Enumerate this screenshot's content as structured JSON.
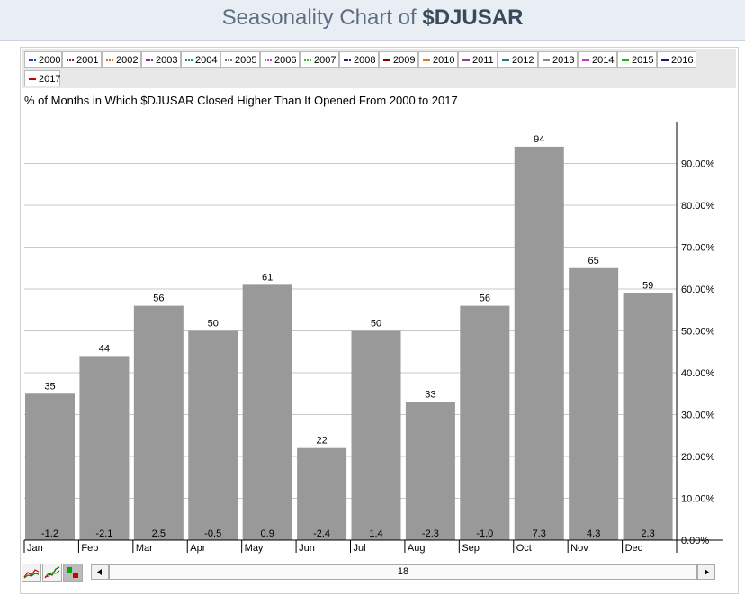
{
  "header": {
    "title_prefix": "Seasonality Chart of ",
    "title_symbol": "$DJUSAR"
  },
  "legend": [
    {
      "label": "2000",
      "color": "#1f3fbf",
      "style": "dotted"
    },
    {
      "label": "2001",
      "color": "#7a2a1a",
      "style": "dotted"
    },
    {
      "label": "2002",
      "color": "#e06a1a",
      "style": "dotted"
    },
    {
      "label": "2003",
      "color": "#8a2a8a",
      "style": "dotted"
    },
    {
      "label": "2004",
      "color": "#1a8a8a",
      "style": "dotted"
    },
    {
      "label": "2005",
      "color": "#777777",
      "style": "dotted"
    },
    {
      "label": "2006",
      "color": "#d040d0",
      "style": "dotted"
    },
    {
      "label": "2007",
      "color": "#30c030",
      "style": "dotted"
    },
    {
      "label": "2008",
      "color": "#1a1a8a",
      "style": "dotted"
    },
    {
      "label": "2009",
      "color": "#8a0000",
      "style": "solid"
    },
    {
      "label": "2010",
      "color": "#e07a1a",
      "style": "solid"
    },
    {
      "label": "2011",
      "color": "#9a3a9a",
      "style": "solid"
    },
    {
      "label": "2012",
      "color": "#1a7a8a",
      "style": "solid"
    },
    {
      "label": "2013",
      "color": "#888888",
      "style": "solid"
    },
    {
      "label": "2014",
      "color": "#d030d0",
      "style": "solid"
    },
    {
      "label": "2015",
      "color": "#20b020",
      "style": "solid"
    },
    {
      "label": "2016",
      "color": "#1a1a7a",
      "style": "solid"
    },
    {
      "label": "2017",
      "color": "#cc0000",
      "style": "solid"
    }
  ],
  "chart_data": {
    "type": "bar",
    "title": "% of Months in Which $DJUSAR Closed Higher Than It Opened From 2000 to 2017",
    "categories": [
      "Jan",
      "Feb",
      "Mar",
      "Apr",
      "May",
      "Jun",
      "Jul",
      "Aug",
      "Sep",
      "Oct",
      "Nov",
      "Dec"
    ],
    "values": [
      35,
      44,
      56,
      50,
      61,
      22,
      50,
      33,
      56,
      94,
      65,
      59
    ],
    "avg_change_labels": [
      "-1.2",
      "-2.1",
      "2.5",
      "-0.5",
      "0.9",
      "-2.4",
      "1.4",
      "-2.3",
      "-1.0",
      "7.3",
      "4.3",
      "2.3"
    ],
    "ylim": [
      0,
      100
    ],
    "yticks": [
      0,
      10,
      20,
      30,
      40,
      50,
      60,
      70,
      80,
      90
    ],
    "ytick_labels": [
      "0.00%",
      "10.00%",
      "20.00%",
      "30.00%",
      "40.00%",
      "50.00%",
      "60.00%",
      "70.00%",
      "80.00%",
      "90.00%"
    ],
    "y_axis_side": "right",
    "grid": true,
    "bar_color": "#999999"
  },
  "scrollbar": {
    "value": "18"
  }
}
